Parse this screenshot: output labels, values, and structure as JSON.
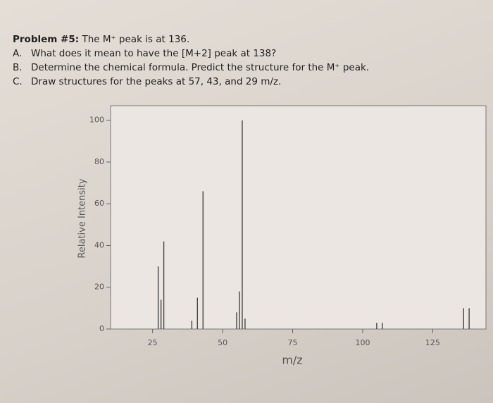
{
  "problem": {
    "title": "Problem #5:",
    "text": "The M⁺ peak is at 136.",
    "items": [
      {
        "label": "A.",
        "text": "What does it mean to have the [M+2] peak at 138?"
      },
      {
        "label": "B.",
        "text": "Determine the chemical formula. Predict the structure for the M⁺ peak."
      },
      {
        "label": "C.",
        "text": "Draw structures for the peaks at 57, 43, and 29 m/z."
      }
    ]
  },
  "chart_data": {
    "type": "bar",
    "x_label": "m/z",
    "y_label": "Relative Intensity",
    "x": [
      27,
      28,
      29,
      39,
      41,
      43,
      55,
      56,
      57,
      58,
      105,
      107,
      136,
      138
    ],
    "values": [
      30,
      14,
      42,
      4,
      15,
      66,
      8,
      18,
      100,
      5,
      3,
      3,
      10,
      10
    ],
    "color": "#444444",
    "xlim": [
      10,
      144
    ],
    "xticks": [
      25,
      50,
      75,
      100,
      125
    ],
    "ylim": [
      0,
      107
    ],
    "yticks": [
      0,
      20,
      40,
      60,
      80,
      100
    ]
  }
}
